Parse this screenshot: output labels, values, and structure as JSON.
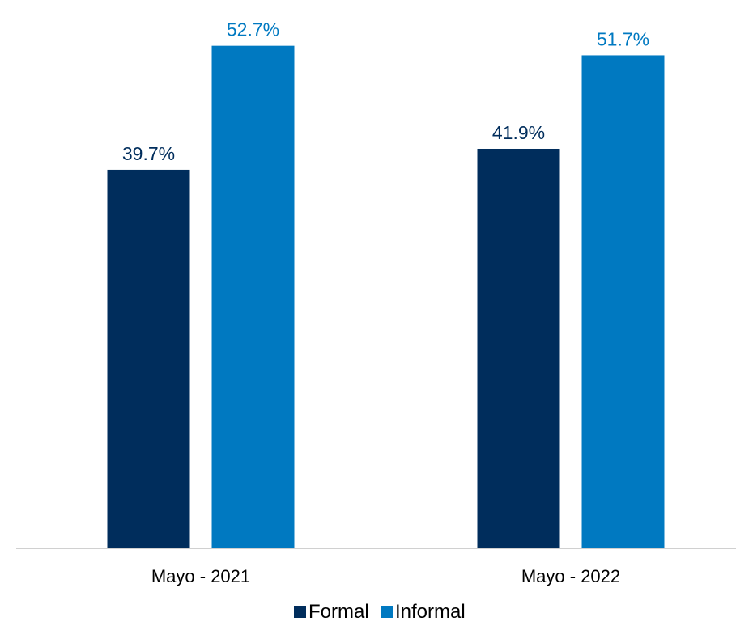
{
  "chart_data": {
    "type": "bar",
    "categories": [
      "Mayo - 2021",
      "Mayo - 2022"
    ],
    "series": [
      {
        "name": "Formal",
        "values": [
          39.7,
          41.9
        ],
        "labels": [
          "39.7%",
          "41.9%"
        ],
        "color": "#002d5c"
      },
      {
        "name": "Informal",
        "values": [
          52.7,
          51.7
        ],
        "labels": [
          "52.7%",
          "51.7%"
        ],
        "color": "#0079c1"
      }
    ],
    "title": "",
    "xlabel": "",
    "ylabel": "",
    "ylim": [
      0,
      55
    ],
    "grid": false,
    "legend": "bottom-center",
    "axis_color": "#d0d0d0"
  }
}
